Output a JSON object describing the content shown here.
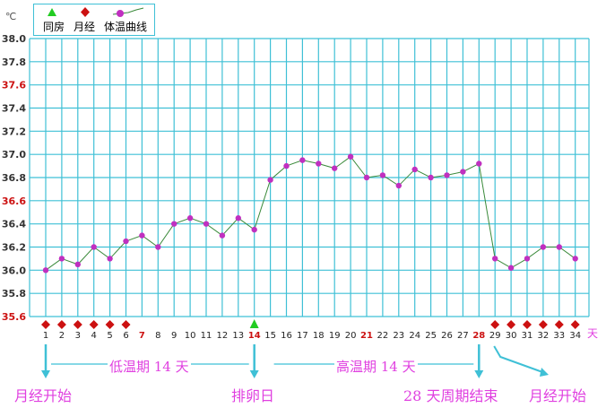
{
  "legend": {
    "intercourse": "同房",
    "menstruation": "月经",
    "temp_curve": "体温曲线"
  },
  "unit_c": "℃",
  "unit_day": "天",
  "annotations": {
    "period_start_1": "月经开始",
    "low_phase": "低温期 14 天",
    "ovulation_day": "排卵日",
    "high_phase": "高温期 14 天",
    "cycle_end": "28 天周期结束",
    "period_start_2": "月经开始"
  },
  "colors": {
    "grid": "#3fc0d6",
    "line": "#3a8a3a",
    "point": "#c030c0",
    "menstruation_marker": "#cc1111",
    "intercourse_marker": "#22cc22",
    "red_label": "#cc1111",
    "annotation": "#e040e0"
  },
  "chart_data": {
    "type": "line",
    "x": [
      1,
      2,
      3,
      4,
      5,
      6,
      7,
      8,
      9,
      10,
      11,
      12,
      13,
      14,
      15,
      16,
      17,
      18,
      19,
      20,
      21,
      22,
      23,
      24,
      25,
      26,
      27,
      28,
      29,
      30,
      31,
      32,
      33,
      34
    ],
    "x_ticks": [
      "1",
      "2",
      "3",
      "4",
      "5",
      "6",
      "7",
      "8",
      "9",
      "10",
      "11",
      "12",
      "13",
      "14",
      "15",
      "16",
      "17",
      "18",
      "19",
      "20",
      "21",
      "22",
      "23",
      "24",
      "25",
      "26",
      "27",
      "28",
      "29",
      "30",
      "31",
      "32",
      "33",
      "34"
    ],
    "x_red_ticks": [
      7,
      14,
      21,
      28
    ],
    "y_ticks": [
      "35.6",
      "35.8",
      "36.0",
      "36.2",
      "36.4",
      "36.6",
      "36.8",
      "37.0",
      "37.2",
      "37.4",
      "37.6",
      "37.8",
      "38.0"
    ],
    "y_red_ticks": [
      "35.6",
      "36.6",
      "37.6"
    ],
    "ylim": [
      35.6,
      38.0
    ],
    "series": [
      {
        "name": "体温曲线",
        "values": [
          36.0,
          36.1,
          36.05,
          36.2,
          36.1,
          36.25,
          36.3,
          36.2,
          36.4,
          36.45,
          36.4,
          36.3,
          36.45,
          36.35,
          36.78,
          36.9,
          36.95,
          36.92,
          36.88,
          36.98,
          36.8,
          36.82,
          36.73,
          36.87,
          36.8,
          36.82,
          36.85,
          36.92,
          36.1,
          36.02,
          36.1,
          36.2,
          36.2,
          36.1
        ]
      }
    ],
    "menstruation_days": [
      1,
      2,
      3,
      4,
      5,
      6,
      29,
      30,
      31,
      32,
      33,
      34
    ],
    "intercourse_days": [
      14
    ],
    "grid": true,
    "legend_position": "top-left"
  }
}
